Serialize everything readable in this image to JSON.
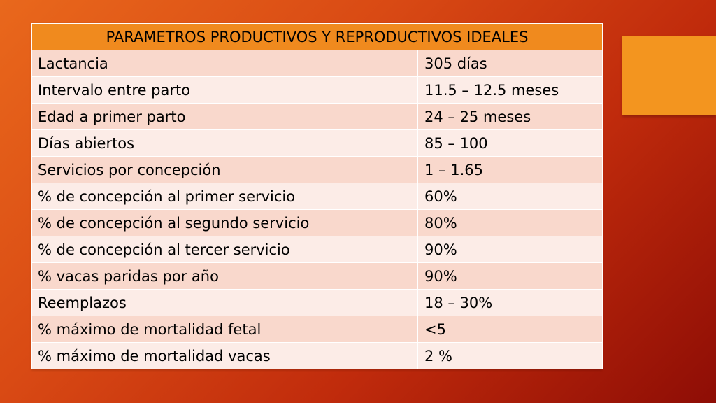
{
  "table": {
    "header": "PARAMETROS PRODUCTIVOS Y REPRODUCTIVOS IDEALES",
    "rows": [
      {
        "parameter": "Lactancia",
        "value": "305 días"
      },
      {
        "parameter": "Intervalo entre parto",
        "value": "11.5 – 12.5 meses"
      },
      {
        "parameter": "Edad a primer parto",
        "value": "24 – 25 meses"
      },
      {
        "parameter": "Días abiertos",
        "value": "85 – 100"
      },
      {
        "parameter": "Servicios por concepción",
        "value": "1 – 1.65"
      },
      {
        "parameter": "% de concepción al primer servicio",
        "value": "60%"
      },
      {
        "parameter": "% de concepción al segundo servicio",
        "value": "80%"
      },
      {
        "parameter": "% de concepción al tercer servicio",
        "value": "90%"
      },
      {
        "parameter": "% vacas paridas por año",
        "value": "90%"
      },
      {
        "parameter": "Reemplazos",
        "value": "18 – 30%"
      },
      {
        "parameter": "% máximo de mortalidad fetal",
        "value": "<5"
      },
      {
        "parameter": "% máximo de mortalidad vacas",
        "value": "2 %"
      }
    ]
  },
  "colors": {
    "header_bg": "#f08a1e",
    "row_odd_bg": "#f9d8cc",
    "row_even_bg": "#fcece7",
    "accent_square": "#f3951f",
    "background_start": "#e9681c",
    "background_end": "#8e0d05"
  }
}
